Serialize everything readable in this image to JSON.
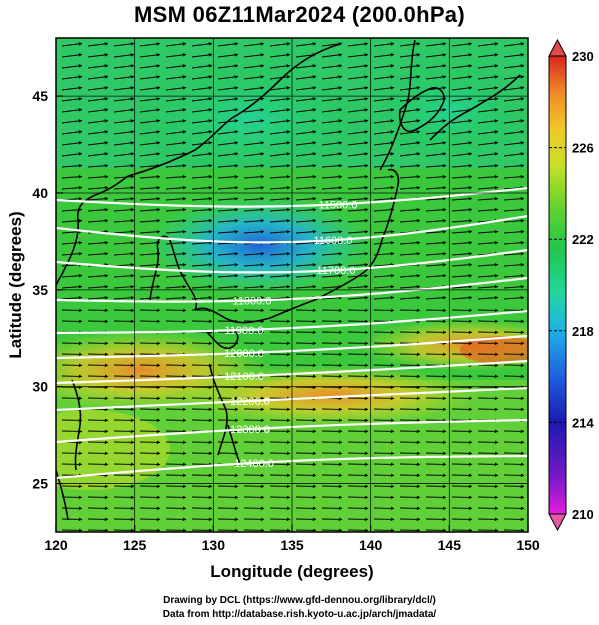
{
  "title": "MSM 06Z11Mar2024 (200.0hPa)",
  "map": {
    "xlabel": "Longitude (degrees)",
    "ylabel": "Latitude  (degrees)",
    "lon_range": [
      120,
      150
    ],
    "lat_range": [
      22.5,
      48
    ],
    "lon_ticks": [
      "120",
      "125",
      "130",
      "135",
      "140",
      "145",
      "150"
    ],
    "lat_ticks": [
      "25",
      "30",
      "35",
      "40",
      "45"
    ],
    "field": "temperature (shaded)",
    "vectors": "wind streamlines (arrows)",
    "contour_color": "#ffffff",
    "coastline_color": "#000000"
  },
  "contour_labels": [
    "11500.0",
    "11600.0",
    "11700.0",
    "11800.0",
    "11900.0",
    "12000.0",
    "12100.0",
    "12200.0",
    "12300.0",
    "12400.0"
  ],
  "colorbar": {
    "min": 210,
    "max": 230,
    "tick_labels": [
      "230",
      "226",
      "222",
      "218",
      "214",
      "210"
    ],
    "colors": [
      "#e41ee0",
      "#7a18c8",
      "#1a1ab0",
      "#1f5fe0",
      "#1fb0e8",
      "#22d6a0",
      "#22c74a",
      "#6cd42c",
      "#c8e028",
      "#f0c828",
      "#f08a28",
      "#e04a20",
      "#d8281e"
    ]
  },
  "credits": {
    "line1": "Drawing by DCL (https://www.gfd-dennou.org/library/dcl/)",
    "line2": "Data from http://database.rish.kyoto-u.ac.jp/arch/jmadata/"
  }
}
